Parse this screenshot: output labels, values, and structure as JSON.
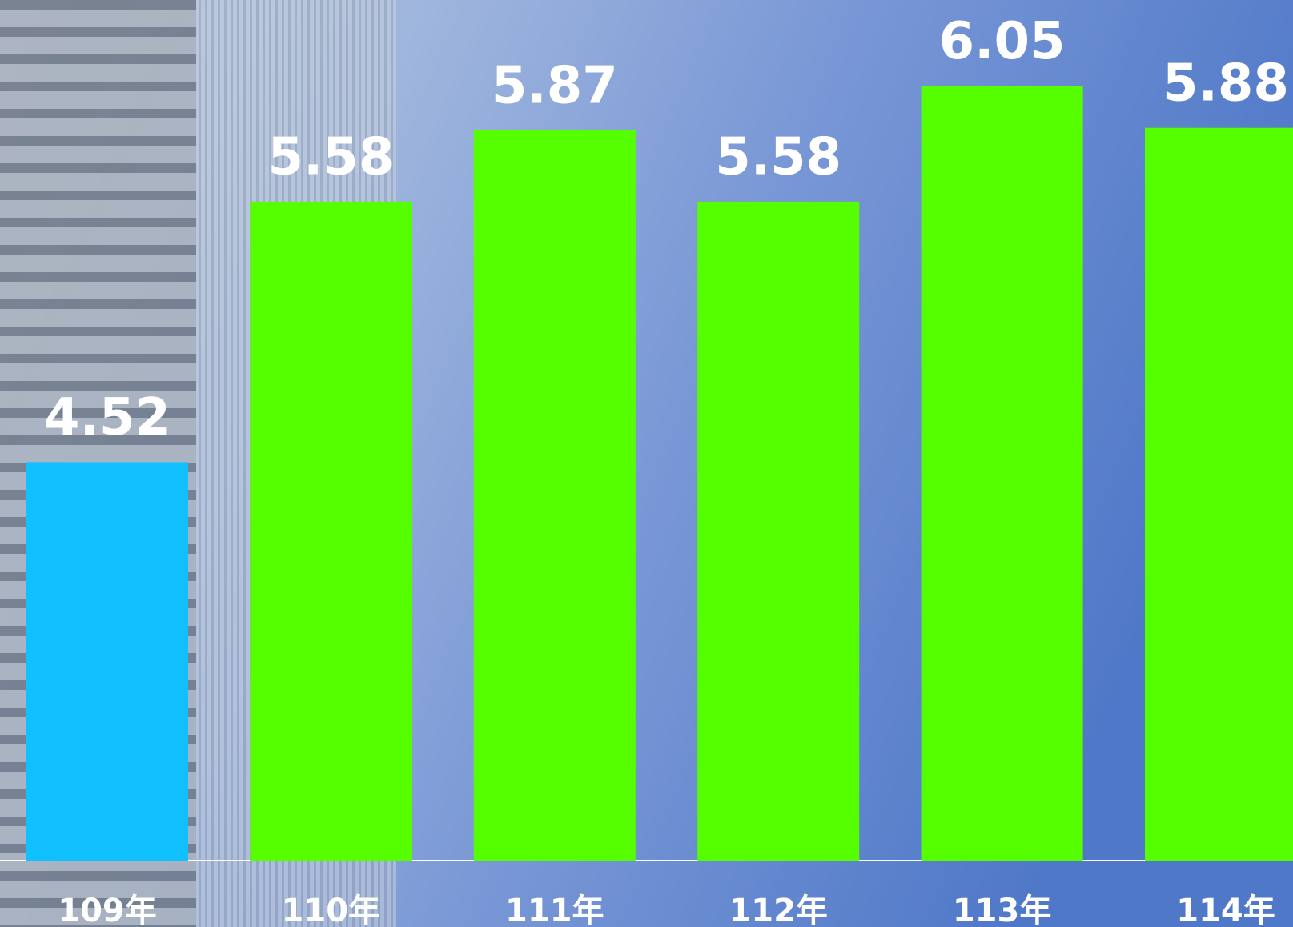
{
  "chart_data": {
    "type": "bar",
    "categories": [
      "109年",
      "110年",
      "111年",
      "112年",
      "113年",
      "114年"
    ],
    "values": [
      4.52,
      5.58,
      5.87,
      5.58,
      6.05,
      5.88
    ],
    "colors": [
      "#10c0ff",
      "#55ff00",
      "#55ff00",
      "#55ff00",
      "#55ff00",
      "#55ff00"
    ],
    "ylim": [
      2.9,
      6.4
    ]
  }
}
